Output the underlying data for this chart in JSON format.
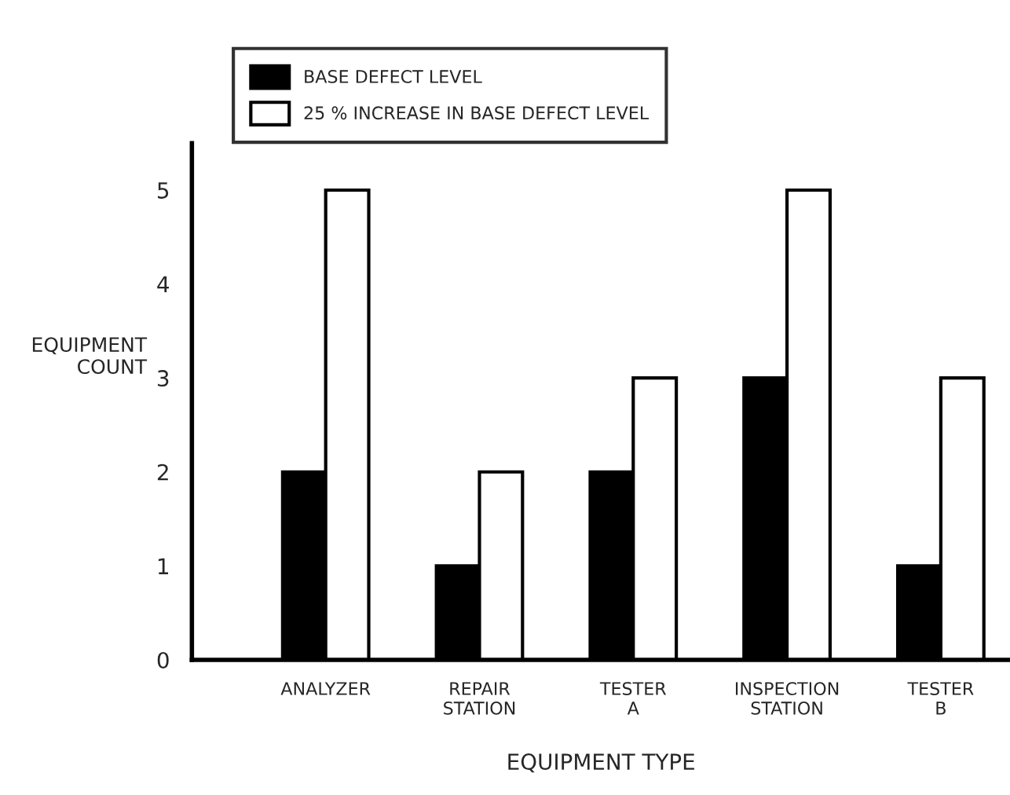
{
  "chart_data": {
    "type": "bar",
    "xlabel": "EQUIPMENT TYPE",
    "ylabel": "EQUIPMENT\nCOUNT",
    "categories": [
      "ANALYZER",
      "REPAIR\nSTATION",
      "TESTER\nA",
      "INSPECTION\nSTATION",
      "TESTER\nB"
    ],
    "series": [
      {
        "name": "BASE DEFECT LEVEL",
        "color": "#000000",
        "values": [
          2,
          1,
          2,
          3,
          1
        ]
      },
      {
        "name": "25 % INCREASE IN BASE DEFECT LEVEL",
        "color": "#ffffff",
        "values": [
          5,
          2,
          3,
          5,
          3
        ]
      }
    ],
    "ylim": [
      0,
      5.5
    ],
    "yticks": [
      0,
      1,
      2,
      3,
      4,
      5
    ],
    "grid": false,
    "legend": "top left"
  }
}
